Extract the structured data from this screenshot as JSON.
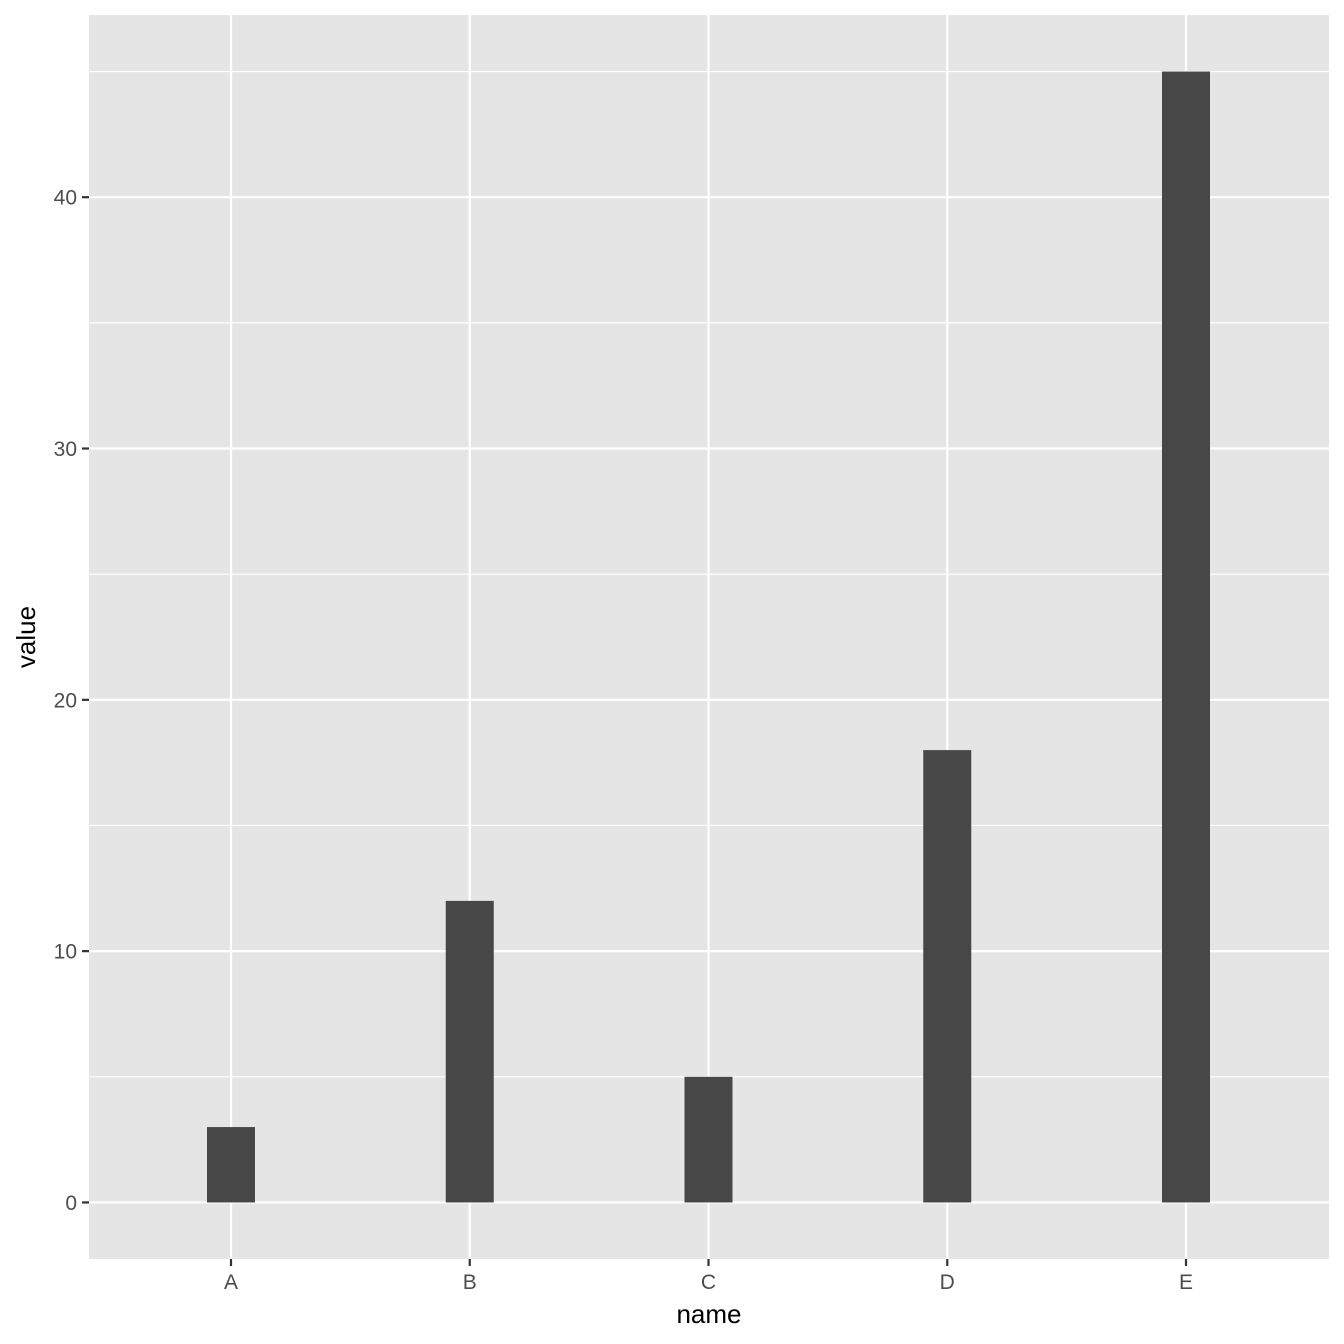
{
  "chart_data": {
    "type": "bar",
    "title": "",
    "xlabel": "name",
    "ylabel": "value",
    "categories": [
      "A",
      "B",
      "C",
      "D",
      "E"
    ],
    "values": [
      3,
      12,
      5,
      18,
      45
    ],
    "ylim": [
      -2.25,
      47.25
    ],
    "y_major_ticks": [
      0,
      10,
      20,
      30,
      40
    ],
    "y_minor_ticks": [
      5,
      15,
      25,
      35,
      45
    ],
    "grid": true,
    "legend": "none",
    "colors": {
      "panel_background": "#e5e5e5",
      "grid_line": "#ffffff",
      "bar_fill": "#474747",
      "tick_mark": "#333333",
      "tick_label": "#4d4d4d",
      "axis_title": "#000000"
    }
  }
}
